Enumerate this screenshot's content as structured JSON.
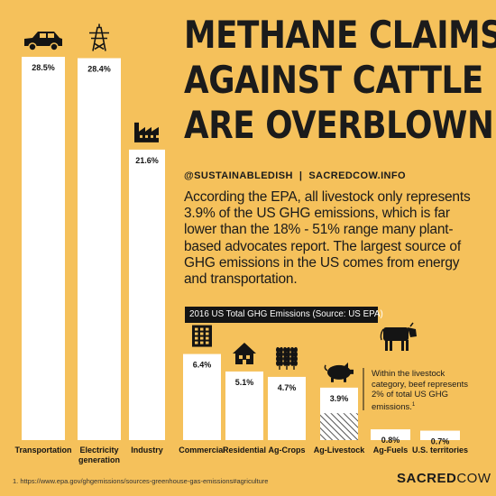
{
  "title_lines": [
    "METHANE CLAIMS",
    "AGAINST CATTLE",
    "ARE OVERBLOWN"
  ],
  "social": {
    "handle": "@SUSTAINABLEDISH",
    "separator": "|",
    "site": "SACREDCOW.INFO"
  },
  "body_text": "According the EPA, all livestock only represents 3.9% of the US GHG emissions, which is far lower than the 18% - 51% range many plant-based advocates report. The largest source of GHG emissions in the US comes from energy and transportation.",
  "note": {
    "text": "Within the livestock category, beef represents 2% of total US GHG emissions.",
    "ref": "1"
  },
  "footnote": "1. https://www.epa.gov/ghgemissions/sources-greenhouse-gas-emissions#agriculture",
  "brand": {
    "bold": "SACRED",
    "light": "COW"
  },
  "colors": {
    "background": "#f5c15b",
    "bar": "#ffffff",
    "ink": "#141414",
    "hatch": "#555555"
  },
  "chart_data": {
    "type": "bar",
    "title": "2016 US Total GHG Emissions (Source: US EPA)",
    "categories": [
      "Transportation",
      "Electricity generation",
      "Industry",
      "Commercial",
      "Residential",
      "Ag-Crops",
      "Ag-Livestock",
      "Ag-Fuels",
      "U.S. territories"
    ],
    "values": [
      28.5,
      28.4,
      21.6,
      6.4,
      5.1,
      4.7,
      3.9,
      0.8,
      0.7
    ],
    "value_labels": [
      "28.5%",
      "28.4%",
      "21.6%",
      "6.4%",
      "5.1%",
      "4.7%",
      "3.9%",
      "0.8%",
      "0.7%"
    ],
    "category_lines": [
      [
        "Transportation"
      ],
      [
        "Electricity",
        "generation"
      ],
      [
        "Industry"
      ],
      [
        "Commercial"
      ],
      [
        "Residential"
      ],
      [
        "Ag-Crops"
      ],
      [
        "Ag-Livestock"
      ],
      [
        "Ag-Fuels"
      ],
      [
        "U.S. territories"
      ]
    ],
    "icons": [
      "car-icon",
      "power-tower-icon",
      "factory-icon",
      "office-building-icon",
      "house-icon",
      "wheat-icon",
      "pig-icon",
      "",
      ""
    ],
    "highlight": {
      "category": "Ag-Livestock",
      "subset_label": "beef",
      "subset_value": 2.0,
      "icon": "cow-icon"
    },
    "ylabel": "",
    "xlabel": "",
    "grid": false,
    "legend": "none"
  }
}
